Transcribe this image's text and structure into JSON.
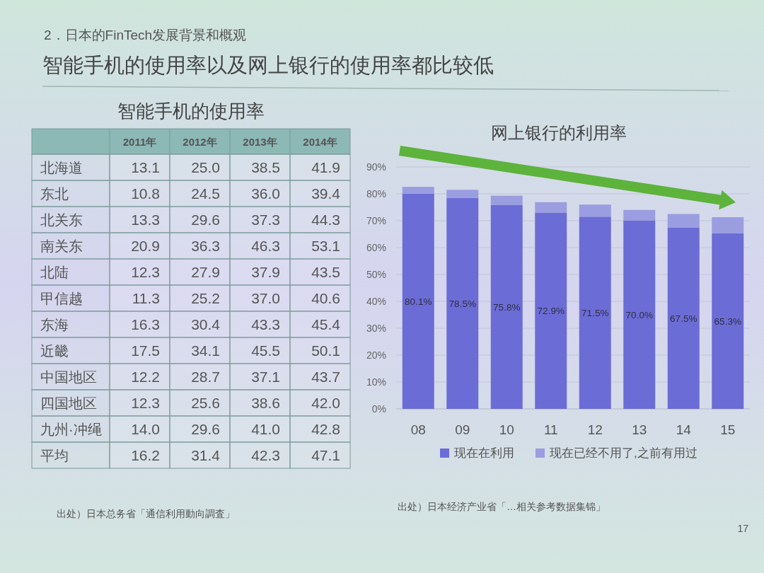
{
  "chart_data": [
    {
      "type": "other",
      "title": "智能手机的使用率以及网上银行的使用率都比较低",
      "subtitle": "2．日本的FinTech发展背景和概观",
      "annotations": [
        "17"
      ]
    },
    {
      "type": "heatmap",
      "title": "智能手机的使用率",
      "categories": [
        "2011年",
        "2012年",
        "2013年",
        "2014年"
      ],
      "y_categories": [
        "北海道",
        "东北",
        "北关东",
        "南关东",
        "北陆",
        "甲信越",
        "东海",
        "近畿",
        "中国地区",
        "四国地区",
        "九州·冲绳",
        "平均"
      ],
      "cells": [
        [
          13.1,
          25.0,
          38.5,
          41.9
        ],
        [
          10.8,
          24.5,
          36.0,
          39.4
        ],
        [
          13.3,
          29.6,
          37.3,
          44.3
        ],
        [
          20.9,
          36.3,
          46.3,
          53.1
        ],
        [
          12.3,
          27.9,
          37.9,
          43.5
        ],
        [
          11.3,
          25.2,
          37.0,
          40.6
        ],
        [
          16.3,
          30.4,
          43.3,
          45.4
        ],
        [
          17.5,
          34.1,
          45.5,
          50.1
        ],
        [
          12.2,
          28.7,
          37.1,
          43.7
        ],
        [
          12.3,
          25.6,
          38.6,
          42.0
        ],
        [
          14.0,
          29.6,
          41.0,
          42.8
        ],
        [
          16.2,
          31.4,
          42.3,
          47.1
        ]
      ],
      "cell_labels": [
        [
          "13.1",
          "25.0",
          "38.5",
          "41.9"
        ],
        [
          "10.8",
          "24.5",
          "36.0",
          "39.4"
        ],
        [
          "13.3",
          "29.6",
          "37.3",
          "44.3"
        ],
        [
          "20.9",
          "36.3",
          "46.3",
          "53.1"
        ],
        [
          "12.3",
          "27.9",
          "37.9",
          "43.5"
        ],
        [
          "11.3",
          "25.2",
          "37.0",
          "40.6"
        ],
        [
          "16.3",
          "30.4",
          "43.3",
          "45.4"
        ],
        [
          "17.5",
          "34.1",
          "45.5",
          "50.1"
        ],
        [
          "12.2",
          "28.7",
          "37.1",
          "43.7"
        ],
        [
          "12.3",
          "25.6",
          "38.6",
          "42.0"
        ],
        [
          "14.0",
          "29.6",
          "41.0",
          "42.8"
        ],
        [
          "16.2",
          "31.4",
          "42.3",
          "47.1"
        ]
      ],
      "annotations": [
        "出处）日本总务省「通信利用動向調査」"
      ]
    },
    {
      "type": "bar",
      "title": "网上银行的利用率",
      "stacked": true,
      "categories": [
        "08",
        "09",
        "10",
        "11",
        "12",
        "13",
        "14",
        "15"
      ],
      "series": [
        {
          "name": "现在在利用",
          "color": "#6c6cd6",
          "values": [
            80.1,
            78.5,
            75.8,
            72.9,
            71.5,
            70.0,
            67.5,
            65.3
          ],
          "value_labels": [
            "80.1%",
            "78.5%",
            "75.8%",
            "72.9%",
            "71.5%",
            "70.0%",
            "67.5%",
            "65.3%"
          ]
        },
        {
          "name": "现在已经不用了,之前有用过",
          "color": "#9a9de0",
          "values": [
            2.5,
            3.0,
            3.5,
            4.0,
            4.5,
            4.0,
            5.0,
            6.0
          ]
        }
      ],
      "ylim": [
        0,
        90
      ],
      "yticks": [
        {
          "value": 0,
          "label": "0%"
        },
        {
          "value": 10,
          "label": "10%"
        },
        {
          "value": 20,
          "label": "20%"
        },
        {
          "value": 30,
          "label": "30%"
        },
        {
          "value": 40,
          "label": "40%"
        },
        {
          "value": 50,
          "label": "50%"
        },
        {
          "value": 60,
          "label": "60%"
        },
        {
          "value": 70,
          "label": "70%"
        },
        {
          "value": 80,
          "label": "80%"
        },
        {
          "value": 90,
          "label": "90%"
        }
      ],
      "grid": "y",
      "legend": "bottom",
      "annotations": [
        "出处）日本经济产业省「…相关参考数据集锦」"
      ]
    }
  ]
}
